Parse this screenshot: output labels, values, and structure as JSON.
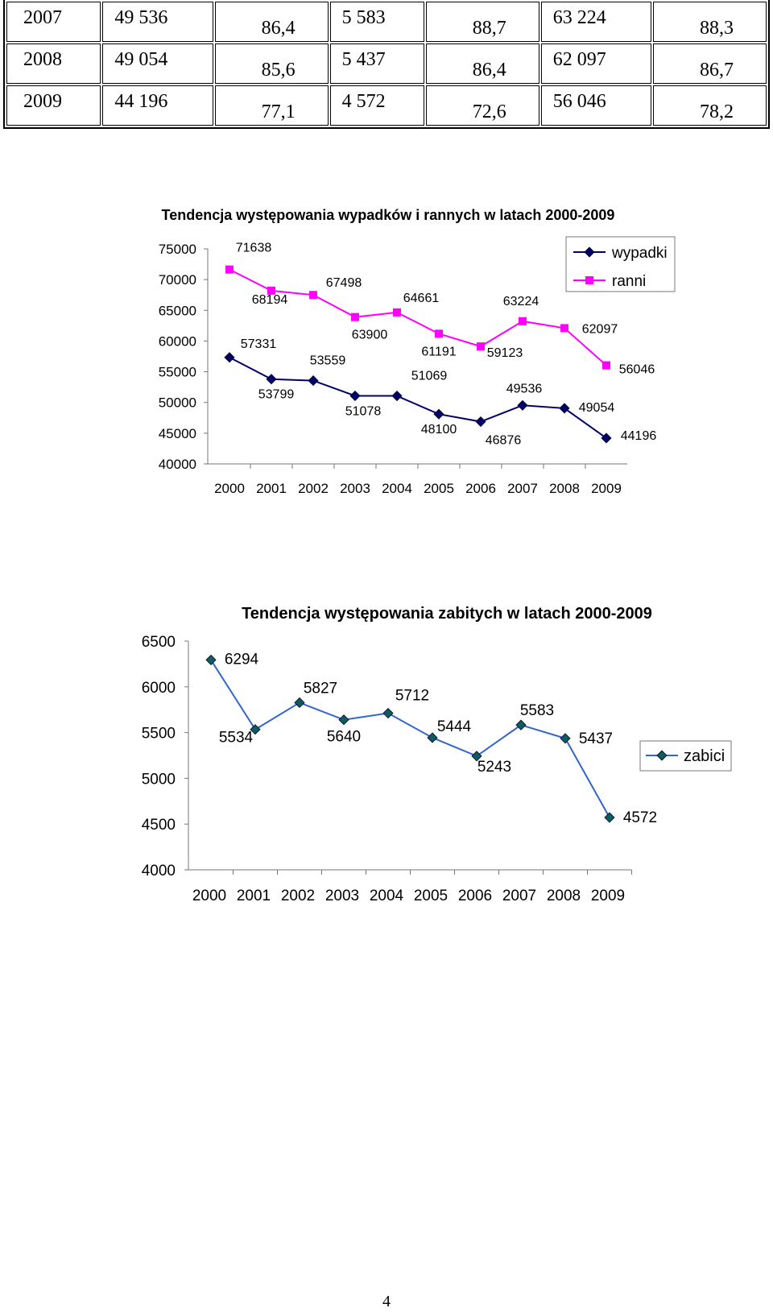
{
  "table": {
    "rows": [
      [
        "2007",
        "49 536",
        "86,4",
        "5 583",
        "88,7",
        "63 224",
        "88,3"
      ],
      [
        "2008",
        "49 054",
        "85,6",
        "5 437",
        "86,4",
        "62 097",
        "86,7"
      ],
      [
        "2009",
        "44 196",
        "77,1",
        "4 572",
        "72,6",
        "56 046",
        "78,2"
      ]
    ]
  },
  "chart_data": [
    {
      "type": "line",
      "title": "Tendencja występowania wypadków i rannych w latach 2000-2009",
      "xlabel": "",
      "ylabel": "",
      "categories": [
        "2000",
        "2001",
        "2002",
        "2003",
        "2004",
        "2005",
        "2006",
        "2007",
        "2008",
        "2009"
      ],
      "ylim": [
        40000,
        75000
      ],
      "yticks": [
        "40000",
        "45000",
        "50000",
        "55000",
        "60000",
        "65000",
        "70000",
        "75000"
      ],
      "grid": false,
      "legend_position": "top-right",
      "series": [
        {
          "name": "wypadki",
          "color": "#000066",
          "marker": "diamond",
          "values": [
            57331,
            53799,
            53559,
            51078,
            51069,
            48100,
            46876,
            49536,
            49054,
            44196
          ],
          "labels": [
            "57331",
            "53799",
            "53559",
            "51078",
            "51069",
            "48100",
            "46876",
            "49536",
            "49054",
            "44196"
          ]
        },
        {
          "name": "ranni",
          "color": "#FF00FF",
          "marker": "square",
          "values": [
            71638,
            68194,
            67498,
            63900,
            64661,
            61191,
            59123,
            63224,
            62097,
            56046
          ],
          "labels": [
            "71638",
            "68194",
            "67498",
            "63900",
            "64661",
            "61191",
            "59123",
            "63224",
            "62097",
            "56046"
          ]
        }
      ]
    },
    {
      "type": "line",
      "title": "Tendencja występowania zabitych w latach 2000-2009",
      "xlabel": "",
      "ylabel": "",
      "categories": [
        "2000",
        "2001",
        "2002",
        "2003",
        "2004",
        "2005",
        "2006",
        "2007",
        "2008",
        "2009"
      ],
      "ylim": [
        4000,
        6500
      ],
      "yticks": [
        "4000",
        "4500",
        "5000",
        "5500",
        "6000",
        "6500"
      ],
      "grid": false,
      "legend_position": "right",
      "series": [
        {
          "name": "zabici",
          "color": "#3366CC",
          "marker": "diamond",
          "values": [
            6294,
            5534,
            5827,
            5640,
            5712,
            5444,
            5243,
            5583,
            5437,
            4572
          ],
          "labels": [
            "6294",
            "5534",
            "5827",
            "5640",
            "5712",
            "5444",
            "5243",
            "5583",
            "5437",
            "4572"
          ]
        }
      ]
    }
  ],
  "page": {
    "number": "4"
  }
}
